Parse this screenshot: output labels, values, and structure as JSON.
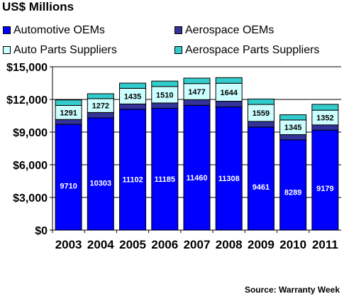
{
  "title": "US$ Millions",
  "source": "Source: Warranty Week",
  "legend": [
    {
      "label": "Automotive OEMs",
      "color": "#0000ff"
    },
    {
      "label": "Aerospace OEMs",
      "color": "#333399"
    },
    {
      "label": "Auto Parts Suppliers",
      "color": "#ccffff"
    },
    {
      "label": "Aerospace Parts Suppliers",
      "color": "#33cccc"
    }
  ],
  "chart_data": {
    "type": "bar",
    "stacked": true,
    "title": "US$ Millions",
    "xlabel": "",
    "ylabel": "",
    "ylim": [
      0,
      15000
    ],
    "yticks": [
      0,
      3000,
      6000,
      9000,
      12000,
      15000
    ],
    "ytick_labels": [
      "$0",
      "$3,000",
      "$6,000",
      "$9,000",
      "$12,000",
      "$15,000"
    ],
    "grid": true,
    "categories": [
      "2003",
      "2004",
      "2005",
      "2006",
      "2007",
      "2008",
      "2009",
      "2010",
      "2011"
    ],
    "series": [
      {
        "name": "Automotive OEMs",
        "color": "#0000ff",
        "label_color": "#ffffff",
        "values": [
          9710,
          10303,
          11102,
          11185,
          11460,
          11308,
          9461,
          8289,
          9179
        ],
        "labels": [
          "9710",
          "10303",
          "11102",
          "11185",
          "11460",
          "11308",
          "9461",
          "8289",
          "9179"
        ]
      },
      {
        "name": "Aerospace OEMs",
        "color": "#333399",
        "values": [
          450,
          500,
          480,
          490,
          520,
          530,
          520,
          480,
          480
        ]
      },
      {
        "name": "Auto Parts Suppliers",
        "color": "#ccffff",
        "label_color": "#000000",
        "values": [
          1291,
          1272,
          1435,
          1510,
          1477,
          1644,
          1559,
          1345,
          1352
        ],
        "labels": [
          "1291",
          "1272",
          "1435",
          "1510",
          "1477",
          "1644",
          "1559",
          "1345",
          "1352"
        ]
      },
      {
        "name": "Aerospace Parts Suppliers",
        "color": "#33cccc",
        "values": [
          500,
          450,
          480,
          500,
          500,
          520,
          500,
          480,
          540
        ]
      }
    ]
  }
}
